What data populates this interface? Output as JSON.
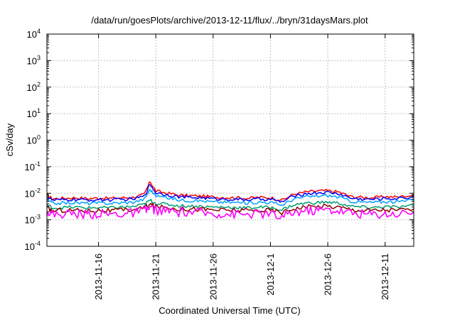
{
  "chart_data": {
    "type": "line",
    "title": "/data/run/goesPlots/archive/2013-12-11/flux/../bryn/31daysMars.plot",
    "xlabel": "Coordinated Universal Time (UTC)",
    "ylabel": "cSv/day",
    "yscale": "log",
    "ylim": [
      0.0001,
      10000
    ],
    "xlim": [
      "2013-11-11T12:00",
      "2013-12-13T12:00"
    ],
    "grid": true,
    "legend": "none",
    "x_ticks": [
      "2013-11-16",
      "2013-11-21",
      "2013-11-26",
      "2013-12-1",
      "2013-12-6",
      "2013-12-11"
    ],
    "y_ticks": [
      {
        "base": "10",
        "exp": "-4"
      },
      {
        "base": "10",
        "exp": "-3"
      },
      {
        "base": "10",
        "exp": "-2"
      },
      {
        "base": "10",
        "exp": "-1"
      },
      {
        "base": "10",
        "exp": "0"
      },
      {
        "base": "10",
        "exp": "1"
      },
      {
        "base": "10",
        "exp": "2"
      },
      {
        "base": "10",
        "exp": "3"
      },
      {
        "base": "10",
        "exp": "4"
      }
    ],
    "x": [
      "2013-11-11T12:00",
      "2013-11-12",
      "2013-11-13",
      "2013-11-14",
      "2013-11-15",
      "2013-11-16",
      "2013-11-17",
      "2013-11-18",
      "2013-11-19",
      "2013-11-20",
      "2013-11-20T12:00",
      "2013-11-21",
      "2013-11-22",
      "2013-11-23",
      "2013-11-24",
      "2013-11-25",
      "2013-11-26",
      "2013-11-27",
      "2013-11-28",
      "2013-11-29",
      "2013-11-30",
      "2013-12-01",
      "2013-12-02",
      "2013-12-03",
      "2013-12-04",
      "2013-12-05",
      "2013-12-06",
      "2013-12-07",
      "2013-12-08",
      "2013-12-09",
      "2013-12-10",
      "2013-12-11",
      "2013-12-12",
      "2013-12-13T12:00"
    ],
    "series": [
      {
        "color": "#ff0000",
        "values": [
          0.0085,
          0.0062,
          0.0065,
          0.0068,
          0.0063,
          0.0066,
          0.0064,
          0.0067,
          0.007,
          0.009,
          0.028,
          0.012,
          0.01,
          0.0085,
          0.008,
          0.0078,
          0.0072,
          0.007,
          0.0068,
          0.0065,
          0.007,
          0.0068,
          0.0055,
          0.009,
          0.011,
          0.012,
          0.0125,
          0.011,
          0.0075,
          0.007,
          0.0068,
          0.0075,
          0.0072,
          0.0085
        ]
      },
      {
        "color": "#0000ff",
        "values": [
          0.0075,
          0.0054,
          0.0056,
          0.0058,
          0.0055,
          0.0057,
          0.0056,
          0.0058,
          0.006,
          0.0078,
          0.022,
          0.0105,
          0.0088,
          0.0074,
          0.0069,
          0.0068,
          0.0062,
          0.006,
          0.0059,
          0.0057,
          0.006,
          0.0059,
          0.0047,
          0.0078,
          0.0095,
          0.0104,
          0.0108,
          0.0095,
          0.0065,
          0.006,
          0.0059,
          0.0064,
          0.0062,
          0.0073
        ]
      },
      {
        "color": "#00a0ff",
        "values": [
          0.0055,
          0.0042,
          0.0043,
          0.0044,
          0.0042,
          0.0043,
          0.0042,
          0.0044,
          0.0046,
          0.006,
          0.014,
          0.008,
          0.0068,
          0.0056,
          0.0053,
          0.0052,
          0.0047,
          0.0046,
          0.0045,
          0.0043,
          0.0046,
          0.0045,
          0.0036,
          0.006,
          0.0072,
          0.0078,
          0.0082,
          0.0072,
          0.005,
          0.0046,
          0.0045,
          0.0049,
          0.0047,
          0.0055
        ]
      },
      {
        "color": "#009e73",
        "values": [
          0.0036,
          0.0028,
          0.0029,
          0.003,
          0.0028,
          0.0029,
          0.0028,
          0.003,
          0.0031,
          0.0038,
          0.0055,
          0.0042,
          0.0038,
          0.0034,
          0.0033,
          0.0032,
          0.003,
          0.003,
          0.0029,
          0.0028,
          0.003,
          0.0029,
          0.0024,
          0.0036,
          0.0042,
          0.0044,
          0.0046,
          0.0042,
          0.0032,
          0.003,
          0.0029,
          0.0031,
          0.003,
          0.0034
        ]
      },
      {
        "color": "#8b0000",
        "values": [
          0.0028,
          0.0022,
          0.0023,
          0.0023,
          0.0022,
          0.0023,
          0.0022,
          0.0023,
          0.0024,
          0.0029,
          0.0038,
          0.0031,
          0.0029,
          0.0026,
          0.0026,
          0.0025,
          0.0024,
          0.0023,
          0.0023,
          0.0022,
          0.0023,
          0.0023,
          0.0019,
          0.0027,
          0.003,
          0.0032,
          0.0033,
          0.003,
          0.0025,
          0.0023,
          0.0023,
          0.0024,
          0.0023,
          0.0026
        ]
      },
      {
        "color": "#ff00ff",
        "values": [
          0.0021,
          0.0016,
          0.0017,
          0.0017,
          0.0016,
          0.0017,
          0.0016,
          0.0017,
          0.0018,
          0.0021,
          0.0028,
          0.0023,
          0.0021,
          0.0019,
          0.0019,
          0.0018,
          0.0017,
          0.0017,
          0.0016,
          0.0016,
          0.0017,
          0.0016,
          0.0012,
          0.0019,
          0.0022,
          0.0023,
          0.0024,
          0.0022,
          0.0018,
          0.0017,
          0.0016,
          0.0017,
          0.0017,
          0.0019
        ]
      }
    ]
  }
}
